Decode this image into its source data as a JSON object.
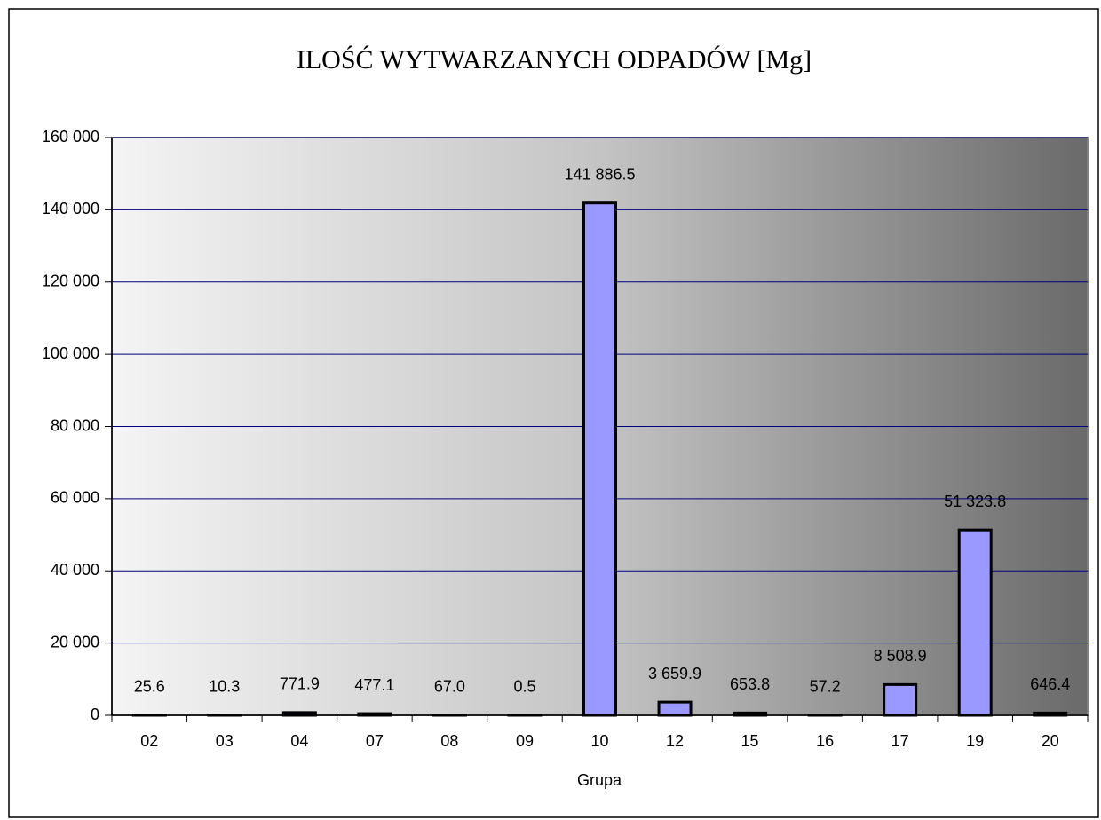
{
  "chart_data": {
    "type": "bar",
    "title": "ILOŚĆ WYTWARZANYCH ODPADÓW [Mg]",
    "x_label": "Grupa",
    "categories": [
      "02",
      "03",
      "04",
      "07",
      "08",
      "09",
      "10",
      "12",
      "15",
      "16",
      "17",
      "19",
      "20"
    ],
    "values": [
      25.6,
      10.3,
      771.9,
      477.1,
      67.0,
      0.5,
      141886.5,
      3659.9,
      653.8,
      57.2,
      8508.9,
      51323.8,
      646.4
    ],
    "value_labels": [
      "25.6",
      "10.3",
      "771.9",
      "477.1",
      "67.0",
      "0.5",
      "141 886.5",
      "3 659.9",
      "653.8",
      "57.2",
      "8 508.9",
      "51 323.8",
      "646.4"
    ],
    "color": "#9999ff",
    "ylim": [
      0,
      160000
    ],
    "yticks": [
      {
        "value": 0,
        "label": "0"
      },
      {
        "value": 20000,
        "label": "20 000"
      },
      {
        "value": 40000,
        "label": "40 000"
      },
      {
        "value": 60000,
        "label": "60 000"
      },
      {
        "value": 80000,
        "label": "80 000"
      },
      {
        "value": 100000,
        "label": "100 000"
      },
      {
        "value": 120000,
        "label": "120 000"
      },
      {
        "value": 140000,
        "label": "140 000"
      },
      {
        "value": 160000,
        "label": "160 000"
      }
    ],
    "grid": true
  }
}
